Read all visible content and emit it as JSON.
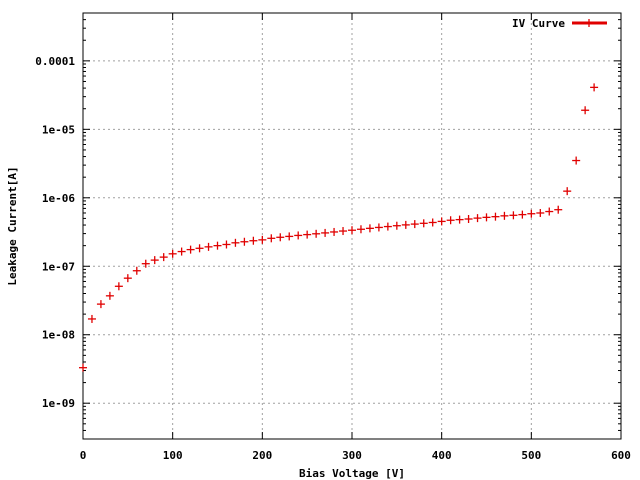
{
  "chart_data": {
    "type": "scatter",
    "xlabel": "Bias Voltage [V]",
    "ylabel": "Leakage Current[A]",
    "xlim": [
      0,
      600
    ],
    "ylim": [
      3e-10,
      0.0005
    ],
    "y_scale": "log",
    "grid": true,
    "legend_position": "top-right",
    "x_ticks": [
      {
        "value": 0,
        "label": "0"
      },
      {
        "value": 100,
        "label": "100"
      },
      {
        "value": 200,
        "label": "200"
      },
      {
        "value": 300,
        "label": "300"
      },
      {
        "value": 400,
        "label": "400"
      },
      {
        "value": 500,
        "label": "500"
      },
      {
        "value": 600,
        "label": "600"
      }
    ],
    "y_ticks": [
      {
        "value": 1e-09,
        "label": "1e-09"
      },
      {
        "value": 1e-08,
        "label": "1e-08"
      },
      {
        "value": 1e-07,
        "label": "1e-07"
      },
      {
        "value": 1e-06,
        "label": "1e-06"
      },
      {
        "value": 1e-05,
        "label": "1e-05"
      },
      {
        "value": 0.0001,
        "label": "0.0001"
      }
    ],
    "series": [
      {
        "name": "IV Curve",
        "color": "#e00000",
        "marker": "plus",
        "x": [
          0,
          10,
          20,
          30,
          40,
          50,
          60,
          70,
          80,
          90,
          100,
          110,
          120,
          130,
          140,
          150,
          160,
          170,
          180,
          190,
          200,
          210,
          220,
          230,
          240,
          250,
          260,
          270,
          280,
          290,
          300,
          310,
          320,
          330,
          340,
          350,
          360,
          370,
          380,
          390,
          400,
          410,
          420,
          430,
          440,
          450,
          460,
          470,
          480,
          490,
          500,
          510,
          520,
          530,
          540,
          550,
          560,
          570
        ],
        "y": [
          3.3e-09,
          1.7e-08,
          2.8e-08,
          3.7e-08,
          5.1e-08,
          6.7e-08,
          8.6e-08,
          1.09e-07,
          1.23e-07,
          1.36e-07,
          1.52e-07,
          1.64e-07,
          1.75e-07,
          1.83e-07,
          1.92e-07,
          2e-07,
          2.08e-07,
          2.2e-07,
          2.28e-07,
          2.36e-07,
          2.43e-07,
          2.56e-07,
          2.65e-07,
          2.73e-07,
          2.82e-07,
          2.9e-07,
          2.98e-07,
          3.07e-07,
          3.17e-07,
          3.27e-07,
          3.36e-07,
          3.47e-07,
          3.58e-07,
          3.69e-07,
          3.8e-07,
          3.91e-07,
          4.02e-07,
          4.13e-07,
          4.24e-07,
          4.36e-07,
          4.52e-07,
          4.7e-07,
          4.8e-07,
          4.9e-07,
          5.05e-07,
          5.18e-07,
          5.3e-07,
          5.45e-07,
          5.55e-07,
          5.68e-07,
          5.85e-07,
          6e-07,
          6.3e-07,
          6.7e-07,
          1.25e-06,
          3.5e-06,
          1.9e-05,
          4.1e-05
        ]
      }
    ]
  }
}
